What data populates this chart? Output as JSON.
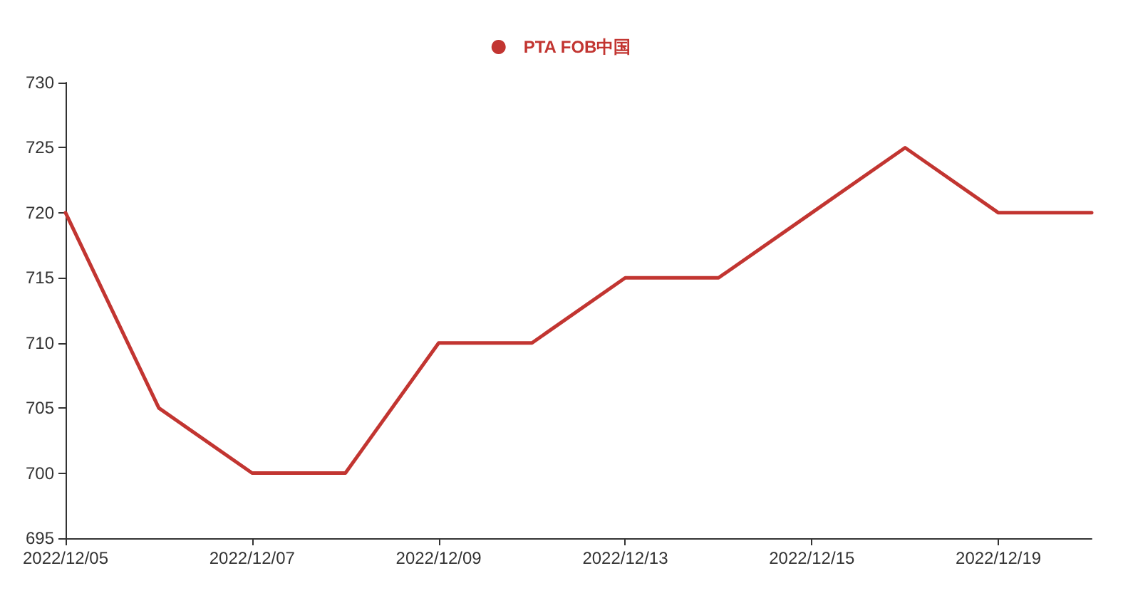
{
  "chart_data": {
    "type": "line",
    "categories": [
      "2022/12/05",
      null,
      "2022/12/07",
      null,
      "2022/12/09",
      null,
      "2022/12/13",
      null,
      "2022/12/15",
      null,
      "2022/12/19",
      null
    ],
    "series": [
      {
        "name": "PTA FOB中国",
        "color": "#c23531",
        "values": [
          720,
          705,
          700,
          700,
          710,
          710,
          715,
          715,
          720,
          725,
          720,
          720
        ]
      }
    ],
    "ylim": [
      695,
      730
    ],
    "yticks": [
      695,
      700,
      705,
      710,
      715,
      720,
      725,
      730
    ],
    "grid": false,
    "legend": "top",
    "marker": "none",
    "line_style": "solid"
  }
}
